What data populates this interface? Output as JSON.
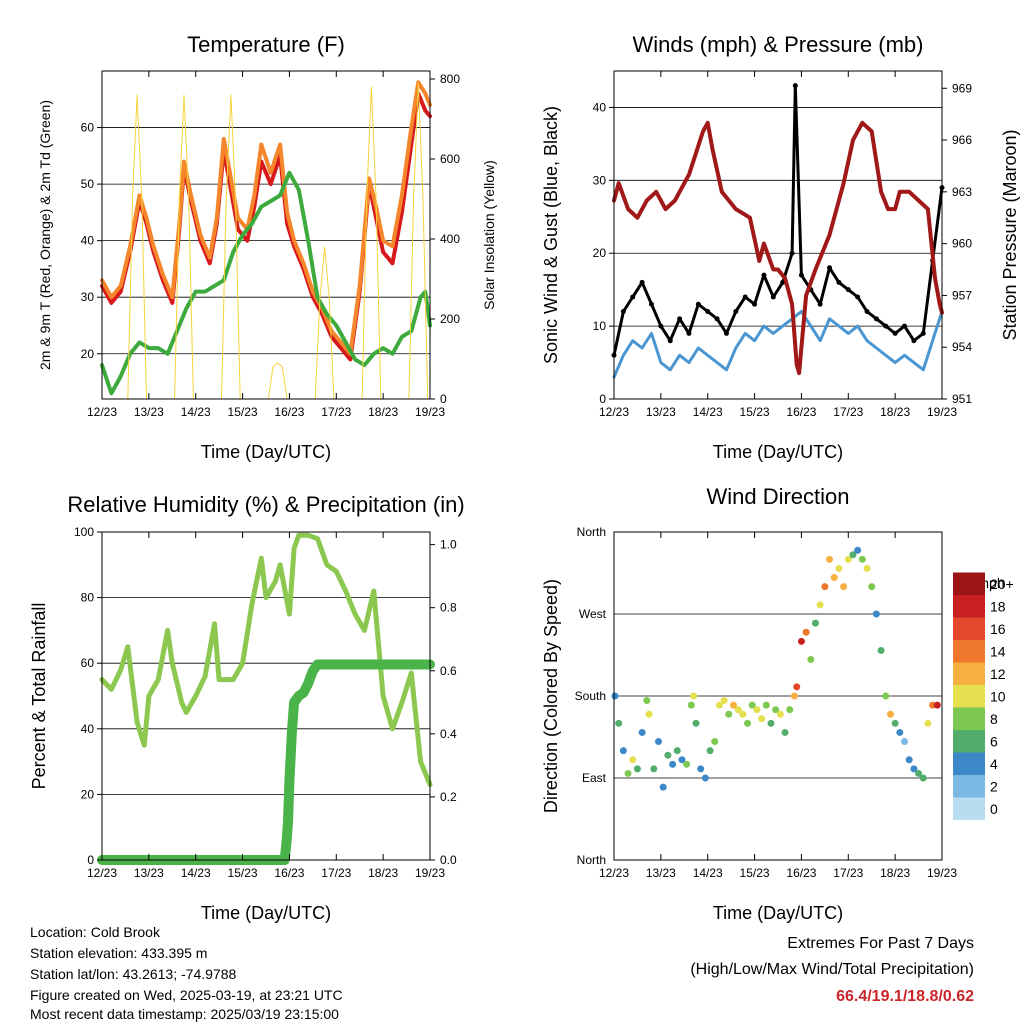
{
  "chart_data": [
    {
      "type": "line",
      "title": "Temperature (F)",
      "xlabel": "Time (Day/UTC)",
      "ylabel": "2m & 9m T (Red, Orange) & 2m Td (Green)",
      "ylabel_right": "Solar Insolation (Yellow)",
      "x_ticks": [
        "12/23",
        "13/23",
        "14/23",
        "15/23",
        "16/23",
        "17/23",
        "18/23",
        "19/23"
      ],
      "xlim": [
        0,
        7
      ],
      "ylim": [
        12,
        70
      ],
      "yticks": [
        20,
        30,
        40,
        50,
        60
      ],
      "ylim_right": [
        0,
        820
      ],
      "yticks_right": [
        0,
        200,
        400,
        600,
        800
      ],
      "grid": "horizontal",
      "series": [
        {
          "name": "2m T",
          "color": "#d7191c",
          "axis": "left",
          "x": [
            0,
            0.2,
            0.4,
            0.6,
            0.8,
            0.95,
            1.1,
            1.3,
            1.5,
            1.65,
            1.75,
            1.9,
            2.1,
            2.3,
            2.45,
            2.6,
            2.75,
            2.9,
            3.1,
            3.25,
            3.4,
            3.6,
            3.8,
            3.95,
            4.1,
            4.3,
            4.5,
            4.7,
            4.9,
            5.1,
            5.3,
            5.5,
            5.7,
            5.85,
            6.0,
            6.2,
            6.4,
            6.6,
            6.75,
            6.9,
            7.0
          ],
          "values": [
            32,
            29,
            31,
            38,
            47,
            43,
            38,
            33,
            29,
            42,
            53,
            47,
            40,
            36,
            43,
            56,
            49,
            42,
            40,
            46,
            54,
            50,
            55,
            43,
            39,
            35,
            30,
            27,
            23,
            21,
            19,
            31,
            50,
            44,
            38,
            36,
            45,
            57,
            66,
            63,
            62
          ]
        },
        {
          "name": "9m T",
          "color": "#f5862b",
          "axis": "left",
          "x": [
            0,
            0.2,
            0.4,
            0.6,
            0.8,
            0.95,
            1.1,
            1.3,
            1.5,
            1.65,
            1.75,
            1.9,
            2.1,
            2.3,
            2.45,
            2.6,
            2.75,
            2.9,
            3.1,
            3.25,
            3.4,
            3.6,
            3.8,
            3.95,
            4.1,
            4.3,
            4.5,
            4.7,
            4.9,
            5.1,
            5.3,
            5.5,
            5.7,
            5.85,
            6.0,
            6.2,
            6.4,
            6.6,
            6.75,
            6.9,
            7.0
          ],
          "values": [
            33,
            30,
            32,
            39,
            48,
            44,
            39,
            34,
            30,
            43,
            54,
            48,
            41,
            37,
            44,
            58,
            51,
            44,
            42,
            48,
            57,
            52,
            57,
            45,
            40,
            36,
            31,
            28,
            24,
            22,
            20,
            32,
            51,
            46,
            40,
            39,
            48,
            60,
            68,
            66,
            64
          ]
        },
        {
          "name": "2m Td",
          "color": "#3caa3c",
          "axis": "left",
          "x": [
            0,
            0.2,
            0.4,
            0.6,
            0.8,
            1.0,
            1.2,
            1.4,
            1.6,
            1.8,
            2.0,
            2.2,
            2.4,
            2.6,
            2.8,
            3.0,
            3.2,
            3.4,
            3.6,
            3.8,
            4.0,
            4.2,
            4.4,
            4.6,
            4.8,
            5.0,
            5.2,
            5.4,
            5.6,
            5.8,
            6.0,
            6.2,
            6.4,
            6.6,
            6.8,
            6.9,
            7.0
          ],
          "values": [
            18,
            13,
            16,
            20,
            22,
            21,
            21,
            20,
            24,
            28,
            31,
            31,
            32,
            33,
            38,
            41,
            43,
            46,
            47,
            48,
            52,
            49,
            40,
            30,
            27,
            25,
            22,
            19,
            18,
            20,
            21,
            20,
            23,
            24,
            30,
            31,
            25
          ]
        },
        {
          "name": "Solar Insolation",
          "color": "#f5d33c",
          "axis": "right",
          "x": [
            0,
            0.55,
            0.65,
            0.75,
            0.85,
            0.95,
            1.0,
            1.55,
            1.65,
            1.75,
            1.85,
            1.95,
            2.0,
            2.55,
            2.65,
            2.75,
            2.85,
            2.95,
            3.0,
            3.55,
            3.65,
            3.75,
            3.85,
            3.95,
            4.0,
            4.55,
            4.65,
            4.75,
            4.85,
            4.95,
            5.0,
            5.55,
            5.65,
            5.75,
            5.85,
            5.95,
            6.0,
            6.55,
            6.65,
            6.75,
            6.85,
            6.95,
            7.0
          ],
          "values": [
            0,
            0,
            500,
            760,
            500,
            0,
            0,
            0,
            500,
            760,
            500,
            0,
            0,
            0,
            500,
            760,
            500,
            0,
            0,
            0,
            80,
            90,
            80,
            0,
            0,
            0,
            250,
            380,
            250,
            0,
            0,
            0,
            500,
            780,
            500,
            0,
            0,
            0,
            500,
            790,
            500,
            0,
            0
          ]
        }
      ]
    },
    {
      "type": "line",
      "title": "Winds (mph) & Pressure (mb)",
      "xlabel": "Time (Day/UTC)",
      "ylabel": "Sonic Wind & Gust (Blue, Black)",
      "ylabel_right": "Station Pressure (Maroon)",
      "x_ticks": [
        "12/23",
        "13/23",
        "14/23",
        "15/23",
        "16/23",
        "17/23",
        "18/23",
        "19/23"
      ],
      "xlim": [
        0,
        7
      ],
      "ylim": [
        0,
        45
      ],
      "yticks": [
        0,
        10,
        20,
        30,
        40
      ],
      "ylim_right": [
        951,
        970
      ],
      "yticks_right": [
        951,
        954,
        957,
        960,
        963,
        966,
        969
      ],
      "grid": "horizontal",
      "series": [
        {
          "name": "Sonic Wind",
          "color": "#4a96d2",
          "axis": "left",
          "x": [
            0,
            0.2,
            0.4,
            0.6,
            0.8,
            1.0,
            1.2,
            1.4,
            1.6,
            1.8,
            2.0,
            2.2,
            2.4,
            2.6,
            2.8,
            3.0,
            3.2,
            3.4,
            3.6,
            3.8,
            4.0,
            4.2,
            4.4,
            4.6,
            4.8,
            5.0,
            5.2,
            5.4,
            5.6,
            5.8,
            6.0,
            6.2,
            6.4,
            6.6,
            6.8,
            7.0
          ],
          "values": [
            3,
            6,
            8,
            7,
            9,
            5,
            4,
            6,
            5,
            7,
            6,
            5,
            4,
            7,
            9,
            8,
            10,
            9,
            10,
            11,
            12,
            10,
            8,
            11,
            10,
            9,
            10,
            8,
            7,
            6,
            5,
            6,
            5,
            4,
            8,
            12
          ]
        },
        {
          "name": "Gust",
          "color": "#000000",
          "axis": "left",
          "x": [
            0,
            0.2,
            0.4,
            0.6,
            0.8,
            1.0,
            1.2,
            1.4,
            1.6,
            1.8,
            2.0,
            2.2,
            2.4,
            2.6,
            2.8,
            3.0,
            3.2,
            3.4,
            3.6,
            3.8,
            3.87,
            4.0,
            4.2,
            4.4,
            4.6,
            4.8,
            5.0,
            5.2,
            5.4,
            5.6,
            5.8,
            6.0,
            6.2,
            6.4,
            6.6,
            6.8,
            7.0
          ],
          "values": [
            6,
            12,
            14,
            16,
            13,
            10,
            8,
            11,
            9,
            13,
            12,
            11,
            9,
            12,
            14,
            13,
            17,
            14,
            16,
            20,
            43,
            17,
            15,
            13,
            18,
            16,
            15,
            14,
            12,
            11,
            10,
            9,
            10,
            8,
            9,
            19,
            29
          ]
        },
        {
          "name": "Station Pressure",
          "color": "#a01818",
          "axis": "right",
          "x": [
            0,
            0.1,
            0.3,
            0.5,
            0.7,
            0.9,
            1.1,
            1.3,
            1.6,
            1.9,
            2.0,
            2.1,
            2.3,
            2.6,
            2.9,
            3.1,
            3.2,
            3.4,
            3.5,
            3.65,
            3.8,
            3.9,
            3.95,
            4.1,
            4.3,
            4.6,
            4.9,
            5.1,
            5.3,
            5.5,
            5.7,
            5.85,
            6.0,
            6.1,
            6.3,
            6.5,
            6.7,
            6.85,
            6.95,
            7.0
          ],
          "values": [
            962.5,
            963.5,
            962.0,
            961.5,
            962.5,
            963.0,
            962.0,
            962.5,
            964.0,
            966.5,
            967.0,
            965.5,
            963.0,
            962.0,
            961.5,
            959.0,
            960.0,
            958.5,
            958.5,
            958.0,
            956.5,
            953.0,
            952.5,
            957.0,
            958.5,
            960.5,
            963.5,
            966.0,
            967.0,
            966.5,
            963.0,
            962.0,
            962.0,
            963.0,
            963.0,
            962.5,
            962.0,
            958.0,
            956.5,
            956.0
          ]
        }
      ]
    },
    {
      "type": "line",
      "title": "Relative Humidity (%) & Precipitation (in)",
      "xlabel": "Time (Day/UTC)",
      "ylabel": "Percent & Total Rainfall",
      "x_ticks": [
        "12/23",
        "13/23",
        "14/23",
        "15/23",
        "16/23",
        "17/23",
        "18/23",
        "19/23"
      ],
      "xlim": [
        0,
        7
      ],
      "ylim": [
        0,
        100
      ],
      "yticks": [
        0,
        20,
        40,
        60,
        80,
        100
      ],
      "ylim_right": [
        0,
        1.04
      ],
      "yticks_right": [
        "0.0",
        "0.2",
        "0.4",
        "0.6",
        "0.8",
        "1.0"
      ],
      "grid": "horizontal",
      "series": [
        {
          "name": "Relative Humidity",
          "color": "#8cc850",
          "axis": "left",
          "x": [
            0,
            0.2,
            0.4,
            0.55,
            0.75,
            0.9,
            1.0,
            1.2,
            1.4,
            1.5,
            1.7,
            1.8,
            2.0,
            2.2,
            2.4,
            2.5,
            2.8,
            3.0,
            3.2,
            3.4,
            3.5,
            3.7,
            3.8,
            4.0,
            4.1,
            4.2,
            4.4,
            4.6,
            4.8,
            5.0,
            5.2,
            5.4,
            5.6,
            5.8,
            6.0,
            6.2,
            6.4,
            6.6,
            6.8,
            7.0
          ],
          "values": [
            55,
            52,
            58,
            65,
            42,
            35,
            50,
            55,
            70,
            60,
            48,
            45,
            50,
            56,
            72,
            55,
            55,
            60,
            78,
            92,
            80,
            85,
            90,
            75,
            95,
            99,
            99,
            98,
            90,
            88,
            82,
            75,
            70,
            82,
            50,
            40,
            48,
            57,
            30,
            23
          ]
        },
        {
          "name": "Total Precipitation",
          "color": "#4ab44a",
          "axis": "right",
          "x": [
            0,
            3.9,
            3.94,
            3.97,
            4.0,
            4.05,
            4.1,
            4.2,
            4.3,
            4.4,
            4.5,
            4.6,
            5.0,
            6.0,
            7.0
          ],
          "values": [
            0,
            0,
            0.06,
            0.12,
            0.25,
            0.4,
            0.5,
            0.52,
            0.53,
            0.56,
            0.6,
            0.62,
            0.62,
            0.62,
            0.62
          ]
        }
      ]
    },
    {
      "type": "scatter",
      "title": "Wind Direction",
      "xlabel": "Time (Day/UTC)",
      "ylabel": "Direction (Colored By Speed)",
      "x_ticks": [
        "12/23",
        "13/23",
        "14/23",
        "15/23",
        "16/23",
        "17/23",
        "18/23",
        "19/23"
      ],
      "xlim": [
        0,
        7
      ],
      "ylim": [
        0,
        360
      ],
      "ytick_labels": [
        "North",
        "East",
        "South",
        "West",
        "North"
      ],
      "grid": "horizontal",
      "legend": {
        "position": "right",
        "title": "mph",
        "labels": [
          "0",
          "2",
          "4",
          "6",
          "8",
          "10",
          "12",
          "14",
          "16",
          "18",
          "20+"
        ],
        "colors": [
          "#b8dcf0",
          "#7cb8e4",
          "#3c88c8",
          "#52ad6a",
          "#7cc850",
          "#e4e050",
          "#f5b040",
          "#f0782c",
          "#e4482c",
          "#c82020",
          "#9c1414"
        ]
      },
      "points_x": [
        0.02,
        0.1,
        0.2,
        0.3,
        0.4,
        0.5,
        0.6,
        0.7,
        0.75,
        0.85,
        0.95,
        1.05,
        1.15,
        1.25,
        1.35,
        1.45,
        1.55,
        1.65,
        1.7,
        1.75,
        1.85,
        1.95,
        2.05,
        2.15,
        2.25,
        2.35,
        2.45,
        2.55,
        2.65,
        2.75,
        2.85,
        2.95,
        3.05,
        3.15,
        3.25,
        3.35,
        3.45,
        3.55,
        3.65,
        3.75,
        3.85,
        3.9,
        4.0,
        4.1,
        4.2,
        4.3,
        4.4,
        4.5,
        4.6,
        4.7,
        4.8,
        4.9,
        5.0,
        5.1,
        5.2,
        5.3,
        5.4,
        5.5,
        5.6,
        5.7,
        5.8,
        5.9,
        6.0,
        6.1,
        6.2,
        6.3,
        6.4,
        6.5,
        6.6,
        6.7,
        6.8,
        6.9
      ],
      "points_dir": [
        180,
        150,
        120,
        95,
        110,
        100,
        140,
        175,
        160,
        100,
        130,
        80,
        115,
        105,
        120,
        110,
        105,
        170,
        180,
        150,
        100,
        90,
        120,
        130,
        170,
        175,
        160,
        170,
        165,
        160,
        150,
        170,
        165,
        155,
        170,
        150,
        165,
        160,
        140,
        165,
        180,
        190,
        240,
        250,
        220,
        260,
        280,
        300,
        330,
        310,
        320,
        300,
        330,
        335,
        340,
        330,
        320,
        300,
        270,
        230,
        180,
        160,
        150,
        140,
        130,
        110,
        100,
        95,
        90,
        150,
        170,
        170
      ],
      "points_speed": [
        3,
        5,
        4,
        7,
        9,
        6,
        4,
        8,
        10,
        5,
        3,
        4,
        6,
        3,
        5,
        4,
        7,
        8,
        10,
        6,
        4,
        3,
        5,
        7,
        10,
        9,
        8,
        11,
        10,
        9,
        7,
        8,
        10,
        9,
        8,
        6,
        7,
        9,
        5,
        8,
        12,
        16,
        18,
        14,
        8,
        6,
        10,
        14,
        12,
        11,
        9,
        12,
        10,
        6,
        4,
        8,
        9,
        7,
        4,
        6,
        8,
        11,
        5,
        3,
        2,
        3,
        4,
        6,
        5,
        10,
        14,
        17
      ]
    }
  ],
  "info": {
    "location": "Location: Cold Brook",
    "elevation": "Station elevation: 433.395 m",
    "latlon": "Station lat/lon: 43.2613; -74.9788",
    "created": "Figure created on Wed, 2025-03-19, at 23:21 UTC",
    "recent": "Most recent data timestamp: 2025/03/19 23:15:00"
  },
  "extremes": {
    "title": "Extremes For Past 7 Days",
    "subtitle": "(High/Low/Max Wind/Total Precipitation)",
    "values": "66.4/19.1/18.8/0.62"
  }
}
